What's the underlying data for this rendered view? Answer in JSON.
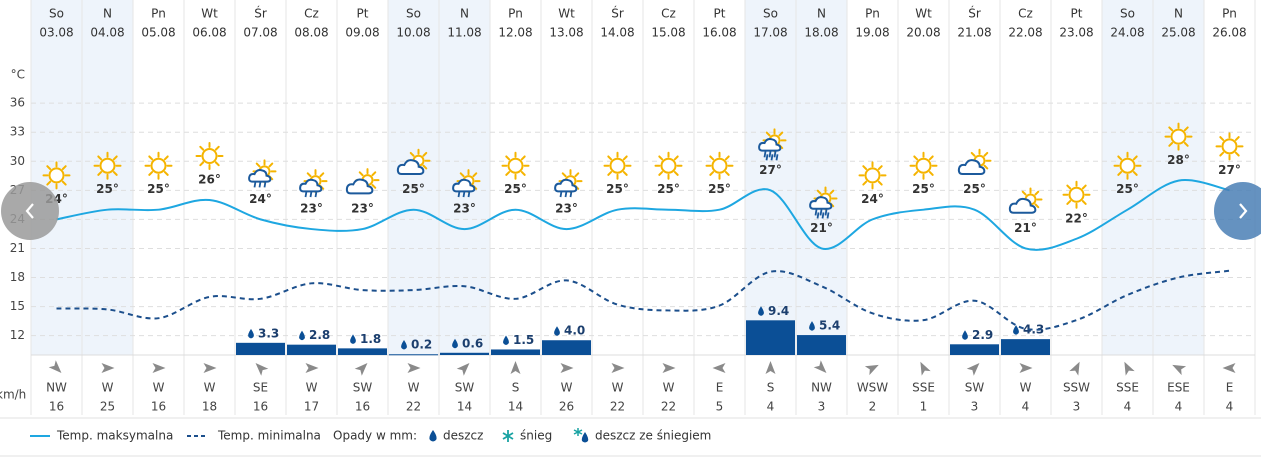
{
  "chart_data": {
    "type": "weather",
    "days": [
      "So",
      "N",
      "Pn",
      "Wt",
      "Śr",
      "Cz",
      "Pt",
      "So",
      "N",
      "Pn",
      "Wt",
      "Śr",
      "Cz",
      "Pt",
      "So",
      "N",
      "Pn",
      "Wt",
      "Śr",
      "Cz",
      "Pt",
      "So",
      "N",
      "Pn"
    ],
    "categories": [
      "03.08",
      "04.08",
      "05.08",
      "06.08",
      "07.08",
      "08.08",
      "09.08",
      "10.08",
      "11.08",
      "12.08",
      "13.08",
      "14.08",
      "15.08",
      "16.08",
      "17.08",
      "18.08",
      "19.08",
      "20.08",
      "21.08",
      "22.08",
      "23.08",
      "24.08",
      "25.08",
      "26.08"
    ],
    "y_unit": "°C",
    "ylim": [
      10,
      42
    ],
    "yticks": [
      12,
      15,
      18,
      21,
      24,
      27,
      30,
      33,
      36
    ],
    "grid": true,
    "series": [
      {
        "name": "Temp. maksymalna",
        "color": "#1ea7e1",
        "values": [
          24,
          25,
          25,
          26,
          24,
          23,
          23,
          25,
          23,
          25,
          23,
          25,
          25,
          25,
          27,
          21,
          24,
          25,
          25,
          21,
          22,
          25,
          28,
          27
        ],
        "value_labels": [
          "24°",
          "25°",
          "25°",
          "26°",
          "24°",
          "23°",
          "23°",
          "25°",
          "23°",
          "25°",
          "23°",
          "25°",
          "25°",
          "25°",
          "27°",
          "21°",
          "24°",
          "25°",
          "25°",
          "21°",
          "22°",
          "25°",
          "28°",
          "27°"
        ]
      },
      {
        "name": "Temp. minimalna",
        "color": "#1c4f8c",
        "dashed": true,
        "values": [
          14.8,
          14.7,
          13.8,
          16,
          15.8,
          17.4,
          16.7,
          16.7,
          17.1,
          15.8,
          17.7,
          15.2,
          14.6,
          15.1,
          18.6,
          17.1,
          14.3,
          13.6,
          15.6,
          12.7,
          13.6,
          16.2,
          18,
          18.7
        ]
      }
    ],
    "precipitation": {
      "title": "Opady w mm:",
      "color": "#0b4f96",
      "lim": [
        0,
        84
      ],
      "values": [
        null,
        null,
        null,
        null,
        3.3,
        2.8,
        1.8,
        0.2,
        0.6,
        1.5,
        4.0,
        null,
        null,
        null,
        9.4,
        5.4,
        null,
        null,
        2.9,
        4.3,
        null,
        null,
        null,
        null
      ],
      "value_labels": [
        null,
        null,
        null,
        null,
        "3.3",
        "2.8",
        "1.8",
        "0.2",
        "0.6",
        "1.5",
        "4.0",
        null,
        null,
        null,
        "9.4",
        "5.4",
        null,
        null,
        "2.9",
        "4.3",
        null,
        null,
        null,
        null
      ],
      "types": [
        "deszcz",
        "śnieg",
        "deszcz ze śniegiem"
      ]
    },
    "wind": {
      "unit": "km/h",
      "directions": [
        "NW",
        "W",
        "W",
        "W",
        "SE",
        "W",
        "SW",
        "W",
        "SW",
        "S",
        "W",
        "W",
        "W",
        "E",
        "S",
        "NW",
        "WSW",
        "SSE",
        "SW",
        "W",
        "SSW",
        "SSE",
        "ESE",
        "E"
      ],
      "speeds": [
        16,
        25,
        16,
        18,
        16,
        17,
        16,
        22,
        14,
        14,
        26,
        22,
        22,
        5,
        4,
        3,
        2,
        1,
        3,
        4,
        3,
        4,
        4,
        4
      ]
    }
  }
}
